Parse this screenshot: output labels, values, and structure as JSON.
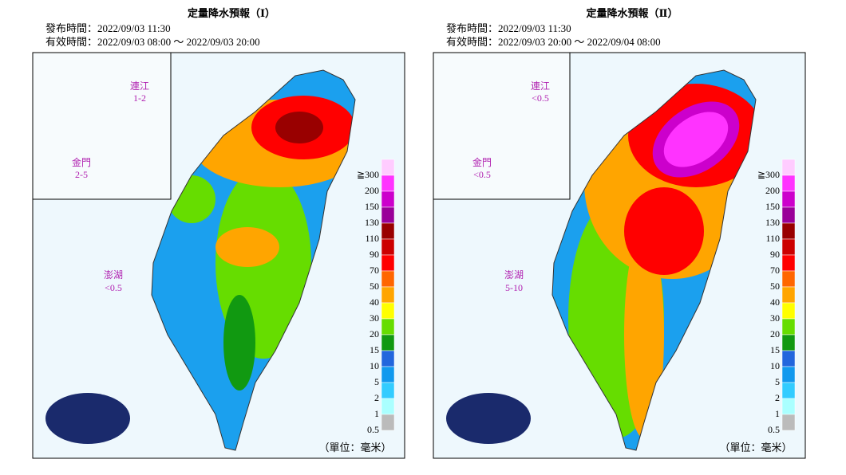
{
  "panels": [
    {
      "title": "定量降水預報（Ⅰ）",
      "issued": "發布時間：2022/09/03 11:30",
      "valid": "有效時間：2022/09/03 08:00 ～ 2022/09/03 20:00",
      "islands": [
        {
          "name": "連江",
          "range": "1-2"
        },
        {
          "name": "金門",
          "range": "2-5"
        },
        {
          "name": "澎湖",
          "range": "<0.5"
        }
      ]
    },
    {
      "title": "定量降水預報（Ⅱ）",
      "issued": "發布時間：2022/09/03 11:30",
      "valid": "有效時間：2022/09/03 20:00 ～ 2022/09/04 08:00",
      "islands": [
        {
          "name": "連江",
          "range": "<0.5"
        },
        {
          "name": "金門",
          "range": "<0.5"
        },
        {
          "name": "澎湖",
          "range": "5-10"
        }
      ]
    }
  ],
  "legend": [
    {
      "label": "≧300",
      "color": "#ffccff"
    },
    {
      "label": "200",
      "color": "#ff33ff"
    },
    {
      "label": "150",
      "color": "#cc00cc"
    },
    {
      "label": "130",
      "color": "#990099"
    },
    {
      "label": "110",
      "color": "#990000"
    },
    {
      "label": "90",
      "color": "#cc0000"
    },
    {
      "label": "70",
      "color": "#ff0000"
    },
    {
      "label": "50",
      "color": "#ff6600"
    },
    {
      "label": "40",
      "color": "#ffa500"
    },
    {
      "label": "30",
      "color": "#ffff00"
    },
    {
      "label": "20",
      "color": "#66dd00"
    },
    {
      "label": "15",
      "color": "#119911"
    },
    {
      "label": "10",
      "color": "#2266dd"
    },
    {
      "label": "5",
      "color": "#1199ee"
    },
    {
      "label": "2",
      "color": "#33ccff"
    },
    {
      "label": "1",
      "color": "#aaffff"
    },
    {
      "label": "0.5",
      "color": "#bbbbbb"
    }
  ],
  "unit": "（單位：毫米）"
}
